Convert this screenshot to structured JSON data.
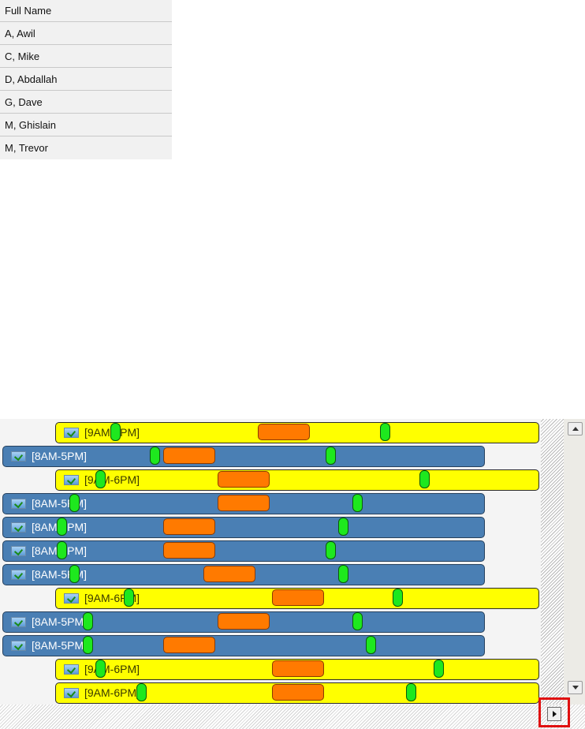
{
  "name_grid": {
    "header": "Full Name",
    "rows": [
      "A, Awil",
      "C, Mike",
      "D, Abdallah",
      "G, Dave",
      "M, Ghislain",
      "M, Trevor"
    ]
  },
  "schedule": {
    "colors": {
      "day_shift": "#ffff00",
      "early_shift": "#4a7fb4",
      "break": "#ff7a00",
      "marker": "#1ee81e"
    },
    "icons": {
      "shift": "checkbox-icon",
      "scroll_up": "arrow-up-icon",
      "scroll_down": "arrow-down-icon",
      "scroll_right": "arrow-right-icon"
    },
    "rows": [
      {
        "label": "[9AM-6PM]",
        "kind": "yellow"
      },
      {
        "label": "[8AM-5PM]",
        "kind": "blue"
      },
      {
        "label": "[9AM-6PM]",
        "kind": "yellow"
      },
      {
        "label": "[8AM-5PM]",
        "kind": "blue"
      },
      {
        "label": "[8AM-5PM]",
        "kind": "blue"
      },
      {
        "label": "[8AM-5PM]",
        "kind": "blue"
      },
      {
        "label": "[8AM-5PM]",
        "kind": "blue"
      },
      {
        "label": "[9AM-6PM]",
        "kind": "yellow"
      },
      {
        "label": "[8AM-5PM]",
        "kind": "blue"
      },
      {
        "label": "[8AM-5PM]",
        "kind": "blue"
      },
      {
        "label": "[9AM-6PM]",
        "kind": "yellow"
      },
      {
        "label": "[9AM-6PM]",
        "kind": "yellow"
      }
    ]
  }
}
